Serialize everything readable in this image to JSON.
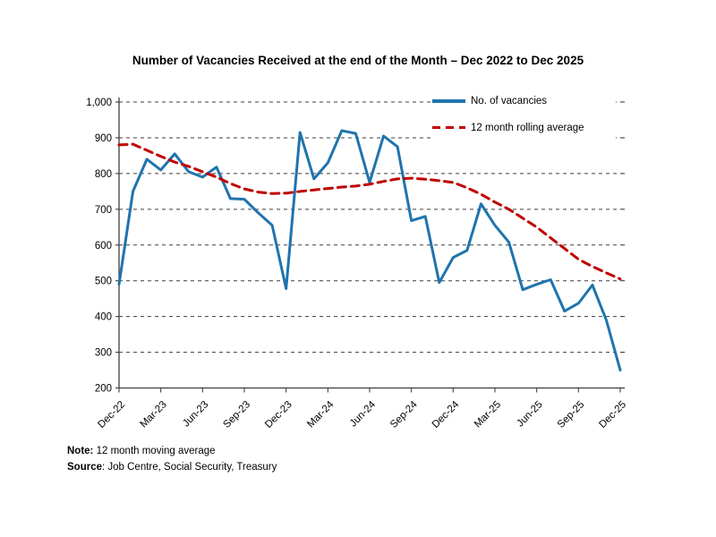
{
  "chart_data": {
    "type": "line",
    "title": "Number of Vacancies Received at the end of the Month – Dec 2022 to Dec 2025",
    "x": [
      "Dec-22",
      "Jan-23",
      "Feb-23",
      "Mar-23",
      "Apr-23",
      "May-23",
      "Jun-23",
      "Jul-23",
      "Aug-23",
      "Sep-23",
      "Oct-23",
      "Nov-23",
      "Dec-23",
      "Jan-24",
      "Feb-24",
      "Mar-24",
      "Apr-24",
      "May-24",
      "Jun-24",
      "Jul-24",
      "Aug-24",
      "Sep-24",
      "Oct-24",
      "Nov-24",
      "Dec-24",
      "Jan-25",
      "Feb-25",
      "Mar-25",
      "Apr-25",
      "May-25",
      "Jun-25",
      "Jul-25",
      "Aug-25",
      "Sep-25",
      "Oct-25",
      "Nov-25",
      "Dec-25"
    ],
    "x_tick_labels": [
      "Dec-22",
      "Mar-23",
      "Jun-23",
      "Sep-23",
      "Dec-23",
      "Mar-24",
      "Jun-24",
      "Sep-24",
      "Dec-24",
      "Mar-25",
      "Jun-25",
      "Sep-25",
      "Dec-25"
    ],
    "x_tick_every": 3,
    "y_ticks": [
      200,
      300,
      400,
      500,
      600,
      700,
      800,
      900,
      1000
    ],
    "y_tick_labels": [
      "200",
      "300",
      "400",
      "500",
      "600",
      "700",
      "800",
      "900",
      "1,000"
    ],
    "ylim": [
      200,
      1000
    ],
    "grid": "horizontal-dashed",
    "legend_position": "top-right-inside",
    "series": [
      {
        "name": "No. of vacancies",
        "color": "#1F74AD",
        "style": "solid",
        "values": [
          490,
          750,
          840,
          810,
          855,
          805,
          790,
          818,
          730,
          728,
          690,
          655,
          478,
          915,
          785,
          830,
          920,
          912,
          775,
          905,
          875,
          668,
          680,
          495,
          565,
          585,
          715,
          655,
          608,
          475,
          490,
          503,
          415,
          437,
          488,
          390,
          250
        ]
      },
      {
        "name": "12 month rolling average",
        "color": "#C00000",
        "style": "dashed",
        "values": [
          880,
          882,
          865,
          848,
          832,
          820,
          805,
          790,
          772,
          757,
          748,
          744,
          745,
          750,
          754,
          758,
          762,
          765,
          770,
          778,
          785,
          787,
          784,
          780,
          775,
          760,
          742,
          720,
          700,
          675,
          650,
          620,
          590,
          560,
          540,
          522,
          505
        ]
      }
    ]
  },
  "footer": {
    "note_label": "Note:",
    "note_text": " 12 month moving average",
    "source_label": "Source",
    "source_text": ": Job Centre, Social Security, Treasury"
  }
}
